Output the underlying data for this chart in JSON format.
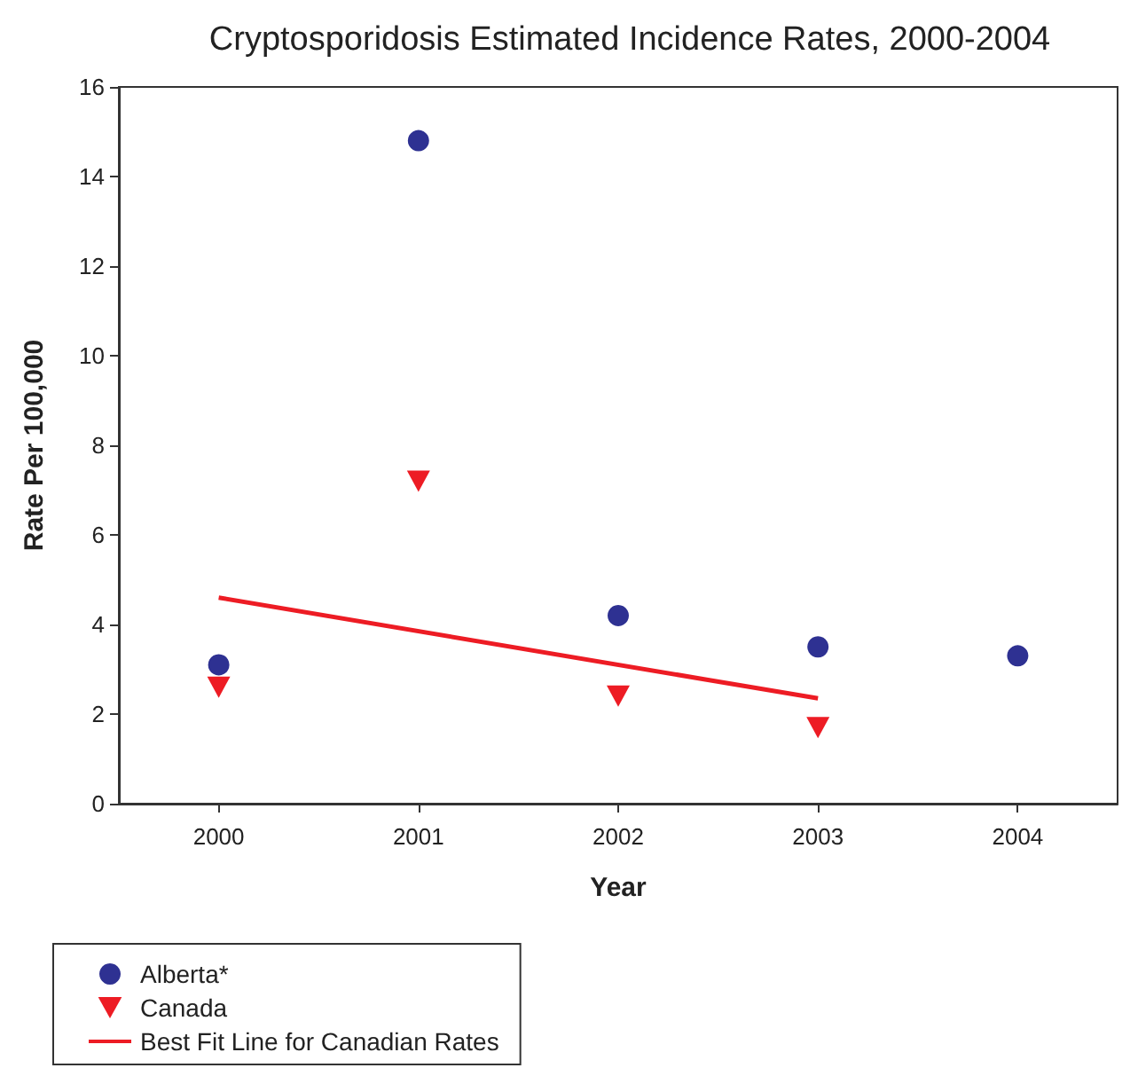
{
  "chart_data": {
    "type": "scatter",
    "title": "Cryptosporidosis Estimated Incidence Rates, 2000-2004",
    "xlabel": "Year",
    "ylabel": "Rate Per 100,000",
    "xlim": [
      1999.5,
      2004.5
    ],
    "xticks": [
      2000,
      2001,
      2002,
      2003,
      2004
    ],
    "ylim": [
      0,
      16
    ],
    "yticks": [
      0,
      2,
      4,
      6,
      8,
      10,
      12,
      14,
      16
    ],
    "grid": false,
    "legend": "bottom left",
    "series": [
      {
        "name": "Alberta*",
        "type": "scatter",
        "marker": "circle",
        "color": "#2e3192",
        "x": [
          2000,
          2001,
          2002,
          2003,
          2004
        ],
        "values": [
          3.1,
          14.8,
          4.2,
          3.5,
          3.3
        ]
      },
      {
        "name": "Canada",
        "type": "scatter",
        "marker": "triangle",
        "color": "#ed1c24",
        "x": [
          2000,
          2001,
          2002,
          2003
        ],
        "values": [
          2.6,
          7.2,
          2.4,
          1.7
        ]
      },
      {
        "name": "Best Fit Line for Canadian Rates",
        "type": "line",
        "marker": "none",
        "line_style": "solid",
        "color": "#ed1c24",
        "x": [
          2000,
          2003
        ],
        "values": [
          4.6,
          2.35
        ]
      }
    ]
  }
}
